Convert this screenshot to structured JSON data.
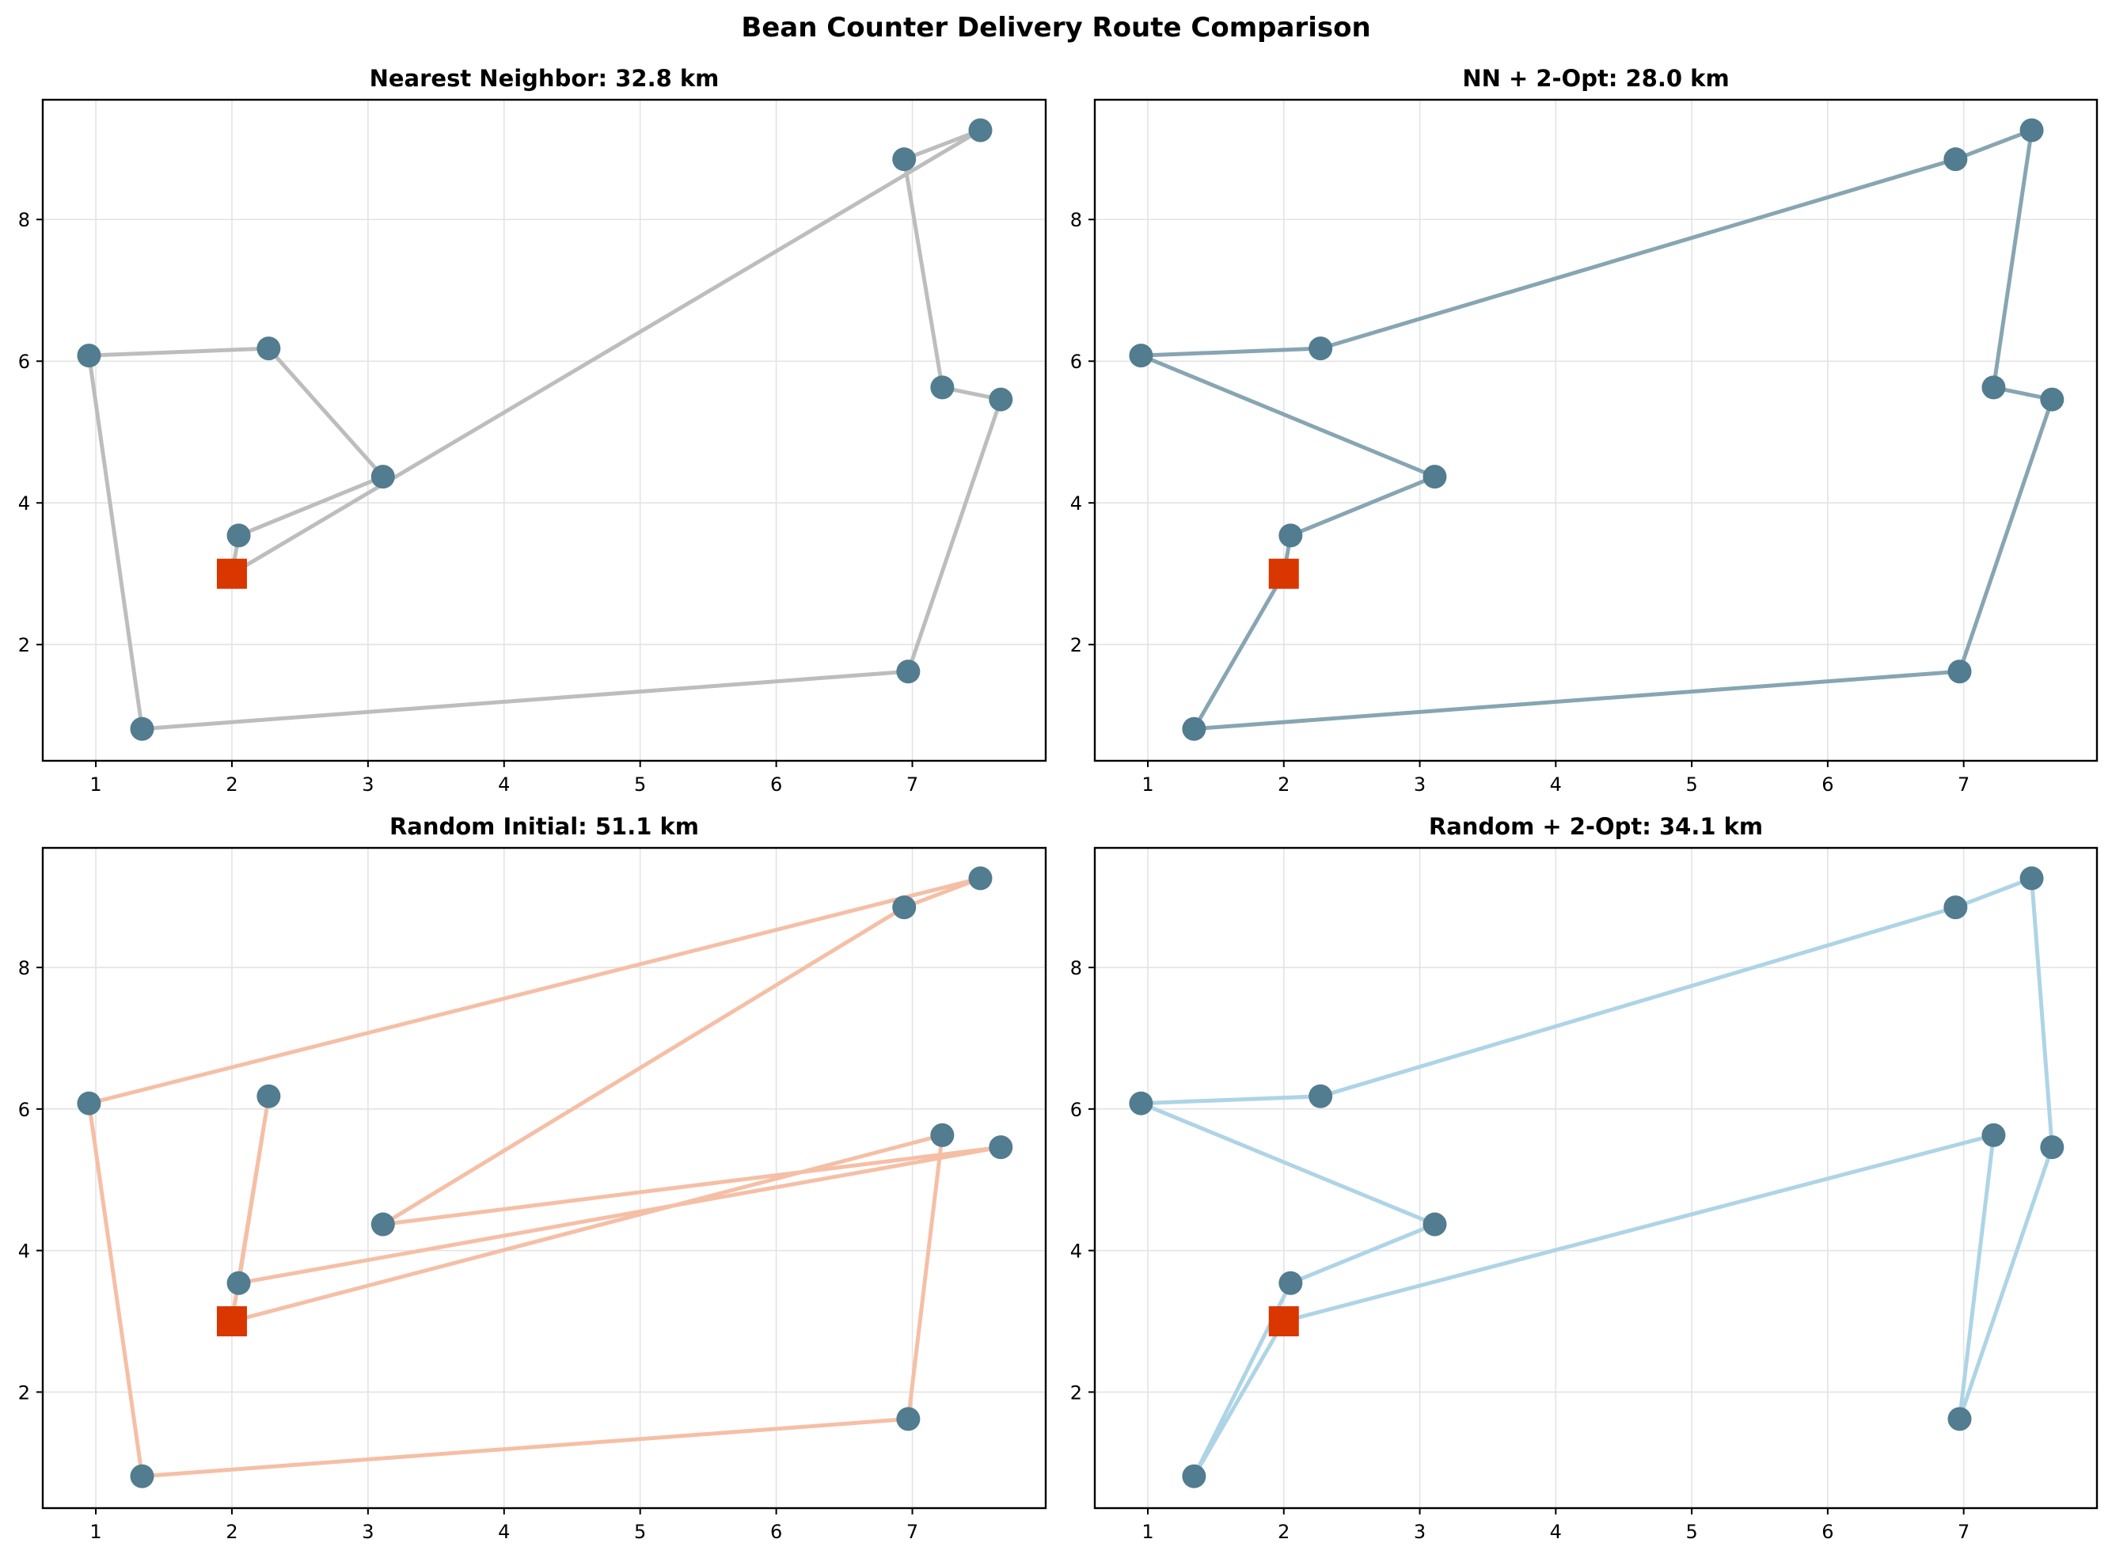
{
  "chart_data": {
    "type": "line",
    "title": "Bean Counter Delivery Route Comparison",
    "layout": "2x2 grid",
    "depot": {
      "x": 2.0,
      "y": 3.0,
      "marker": "square",
      "color": "#D93600"
    },
    "stops": [
      {
        "id": "A",
        "x": 2.05,
        "y": 3.54
      },
      {
        "id": "B",
        "x": 3.11,
        "y": 4.37
      },
      {
        "id": "C",
        "x": 2.27,
        "y": 6.18
      },
      {
        "id": "D",
        "x": 0.95,
        "y": 6.08
      },
      {
        "id": "E",
        "x": 1.34,
        "y": 0.81
      },
      {
        "id": "F",
        "x": 6.97,
        "y": 1.62
      },
      {
        "id": "G",
        "x": 7.65,
        "y": 5.46
      },
      {
        "id": "H",
        "x": 7.22,
        "y": 5.63
      },
      {
        "id": "I",
        "x": 6.94,
        "y": 8.85
      },
      {
        "id": "J",
        "x": 7.5,
        "y": 9.26
      }
    ],
    "stop_color": "#527C8F",
    "xlim": [
      0.61,
      7.98
    ],
    "ylim": [
      0.36,
      9.69
    ],
    "xticks": [
      1,
      2,
      3,
      4,
      5,
      6,
      7
    ],
    "yticks": [
      2,
      4,
      6,
      8
    ],
    "grid": true,
    "xlabel": "",
    "ylabel": "",
    "panels": [
      {
        "title": "Nearest Neighbor: 32.8 km",
        "distance_km": 32.8,
        "line_color": "#BDBDBD",
        "route": [
          "depot",
          "A",
          "B",
          "C",
          "D",
          "E",
          "F",
          "G",
          "H",
          "I",
          "J",
          "depot"
        ]
      },
      {
        "title": "NN + 2-Opt: 28.0 km",
        "distance_km": 28.0,
        "line_color": "#87A5B2",
        "route": [
          "depot",
          "A",
          "B",
          "D",
          "C",
          "I",
          "J",
          "H",
          "G",
          "F",
          "E",
          "depot"
        ]
      },
      {
        "title": "Random Initial: 51.1 km",
        "distance_km": 51.1,
        "line_color": "#F5BFA6",
        "route": [
          "depot",
          "H",
          "F",
          "E",
          "D",
          "J",
          "I",
          "B",
          "G",
          "A",
          "C",
          "depot"
        ]
      },
      {
        "title": "Random + 2-Opt: 34.1 km",
        "distance_km": 34.1,
        "line_color": "#AED4E6",
        "route": [
          "depot",
          "E",
          "A",
          "B",
          "D",
          "C",
          "I",
          "J",
          "G",
          "F",
          "H",
          "depot"
        ]
      }
    ]
  }
}
